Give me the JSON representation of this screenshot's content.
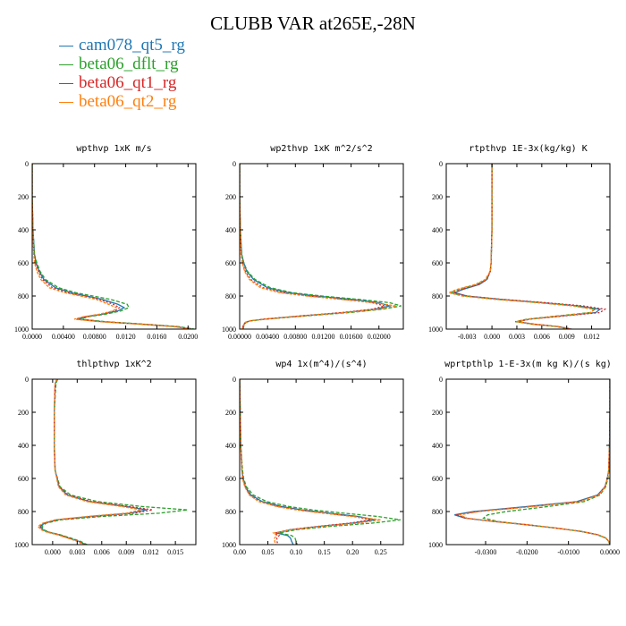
{
  "title": "CLUBB VAR at265E,-28N",
  "colors": {
    "cam078_qt5_rg": "#1f77b4",
    "beta06_dflt_rg": "#2ca02c",
    "beta06_qt1_rg": "#d62728",
    "beta06_qt2_rg": "#ff7f0e"
  },
  "legend": [
    {
      "name": "cam078_qt5_rg",
      "color": "#1f77b4"
    },
    {
      "name": "beta06_dflt_rg",
      "color": "#2ca02c"
    },
    {
      "name": "beta06_qt1_rg",
      "color": "#d62728"
    },
    {
      "name": "beta06_qt2_rg",
      "color": "#ff7f0e"
    }
  ],
  "chart_data": [
    {
      "type": "line",
      "title": "wpthvp  1xK m/s",
      "xlim": [
        0,
        0.021
      ],
      "xticks": [
        0,
        0.004,
        0.008,
        0.012,
        0.016,
        0.02
      ],
      "xtick_labels": [
        "0.0000",
        "0.00400",
        "0.00800",
        "0.0120",
        "0.0160",
        "0.0200"
      ],
      "ylim": [
        1000,
        0
      ],
      "yticks": [
        0,
        200,
        400,
        600,
        800,
        1000
      ],
      "y": [
        0,
        200,
        400,
        550,
        600,
        650,
        700,
        750,
        780,
        800,
        820,
        850,
        870,
        890,
        910,
        925,
        940,
        955,
        970,
        985,
        1000
      ],
      "series": [
        {
          "name": "cam078_qt5_rg",
          "x": [
            0,
            0,
            0.0001,
            0.0003,
            0.0005,
            0.0009,
            0.0015,
            0.003,
            0.005,
            0.007,
            0.009,
            0.011,
            0.0118,
            0.011,
            0.009,
            0.007,
            0.0058,
            0.009,
            0.014,
            0.0185,
            0.0205
          ]
        },
        {
          "name": "beta06_dflt_rg",
          "x": [
            0,
            0,
            0.0001,
            0.0003,
            0.0006,
            0.001,
            0.0017,
            0.0034,
            0.0056,
            0.0078,
            0.01,
            0.0122,
            0.0124,
            0.0114,
            0.0094,
            0.0072,
            0.0062,
            0.0094,
            0.0143,
            0.0188,
            0.0208
          ]
        },
        {
          "name": "beta06_qt1_rg",
          "x": [
            0,
            0,
            0.0001,
            0.0002,
            0.0004,
            0.0008,
            0.0013,
            0.0026,
            0.0046,
            0.0066,
            0.0086,
            0.0104,
            0.0112,
            0.0106,
            0.0088,
            0.0068,
            0.0056,
            0.0088,
            0.0138,
            0.0184,
            0.0204
          ]
        },
        {
          "name": "beta06_qt2_rg",
          "x": [
            0,
            0,
            0.0001,
            0.0002,
            0.0003,
            0.0006,
            0.0011,
            0.0022,
            0.0042,
            0.0062,
            0.0082,
            0.0098,
            0.0108,
            0.0104,
            0.0086,
            0.0066,
            0.0054,
            0.0086,
            0.0136,
            0.0182,
            0.0203
          ]
        }
      ]
    },
    {
      "type": "line",
      "title": "wp2thvp  1xK m^2/s^2",
      "xlim": [
        0,
        0.0235
      ],
      "xticks": [
        0,
        0.004,
        0.008,
        0.012,
        0.016,
        0.02
      ],
      "xtick_labels": [
        "0.00000",
        "0.00400",
        "0.00800",
        "0.01200",
        "0.01600",
        "0.02000"
      ],
      "ylim": [
        1000,
        0
      ],
      "yticks": [
        0,
        200,
        400,
        600,
        800,
        1000
      ],
      "y": [
        0,
        200,
        400,
        550,
        600,
        650,
        700,
        750,
        780,
        800,
        820,
        840,
        860,
        880,
        900,
        920,
        940,
        950,
        960,
        980,
        1000
      ],
      "series": [
        {
          "name": "cam078_qt5_rg",
          "x": [
            0,
            0,
            0.0001,
            0.0003,
            0.0006,
            0.001,
            0.002,
            0.004,
            0.007,
            0.011,
            0.016,
            0.02,
            0.0215,
            0.0195,
            0.015,
            0.009,
            0.0035,
            0.0015,
            0.0008,
            0.0005,
            0.0004
          ]
        },
        {
          "name": "beta06_dflt_rg",
          "x": [
            0,
            0,
            0.0001,
            0.0003,
            0.0006,
            0.0011,
            0.0022,
            0.0044,
            0.0076,
            0.0118,
            0.017,
            0.0215,
            0.0232,
            0.0205,
            0.0158,
            0.0096,
            0.0038,
            0.0016,
            0.0009,
            0.0006,
            0.0005
          ]
        },
        {
          "name": "beta06_qt1_rg",
          "x": [
            0,
            0,
            0.0001,
            0.0002,
            0.0004,
            0.0008,
            0.0016,
            0.0034,
            0.0062,
            0.01,
            0.0148,
            0.019,
            0.0208,
            0.019,
            0.0146,
            0.0088,
            0.0034,
            0.0014,
            0.0008,
            0.0005,
            0.0004
          ]
        },
        {
          "name": "beta06_qt2_rg",
          "x": [
            0,
            0,
            0.0001,
            0.0002,
            0.0004,
            0.0007,
            0.0014,
            0.003,
            0.0058,
            0.0096,
            0.0145,
            0.0192,
            0.0225,
            0.02,
            0.0152,
            0.0092,
            0.0036,
            0.0015,
            0.0008,
            0.0005,
            0.0004
          ]
        }
      ]
    },
    {
      "type": "line",
      "title": "rtpthvp  1E-3x(kg/kg) K",
      "xlim": [
        -0.0055,
        0.0142
      ],
      "xticks": [
        -0.003,
        0,
        0.003,
        0.006,
        0.009,
        0.012
      ],
      "xtick_labels": [
        "-0.003",
        "0.000",
        "0.003",
        "0.006",
        "0.009",
        "0.012"
      ],
      "ylim": [
        1000,
        0
      ],
      "yticks": [
        0,
        200,
        400,
        600,
        800,
        1000
      ],
      "y": [
        0,
        200,
        400,
        600,
        650,
        700,
        730,
        760,
        780,
        800,
        820,
        840,
        860,
        880,
        900,
        920,
        940,
        955,
        970,
        985,
        1000
      ],
      "series": [
        {
          "name": "cam078_qt5_rg",
          "x": [
            0,
            0,
            0,
            -0.0001,
            -0.0002,
            -0.0006,
            -0.0015,
            -0.0035,
            -0.0045,
            -0.003,
            0.001,
            0.006,
            0.0105,
            0.013,
            0.0125,
            0.0085,
            0.0045,
            0.003,
            0.005,
            0.008,
            0.0095
          ]
        },
        {
          "name": "beta06_dflt_rg",
          "x": [
            0,
            0,
            0,
            -0.0001,
            -0.0002,
            -0.0007,
            -0.0018,
            -0.004,
            -0.005,
            -0.0034,
            0.0006,
            0.0056,
            0.01,
            0.0124,
            0.0118,
            0.008,
            0.0042,
            0.0028,
            0.0048,
            0.0078,
            0.0093
          ]
        },
        {
          "name": "beta06_qt1_rg",
          "x": [
            0,
            0,
            0,
            -0.0001,
            -0.0002,
            -0.0006,
            -0.0016,
            -0.0036,
            -0.0046,
            -0.003,
            0.0012,
            0.0064,
            0.011,
            0.0136,
            0.013,
            0.0088,
            0.0046,
            0.0031,
            0.0051,
            0.0081,
            0.0096
          ]
        },
        {
          "name": "beta06_qt2_rg",
          "x": [
            0,
            0,
            0,
            -0.0001,
            -0.0002,
            -0.0008,
            -0.002,
            -0.0042,
            -0.0052,
            -0.0036,
            0.0004,
            0.0054,
            0.0098,
            0.0122,
            0.012,
            0.0082,
            0.0044,
            0.0029,
            0.0049,
            0.0079,
            0.0094
          ]
        }
      ]
    },
    {
      "type": "line",
      "title": "thlpthvp  1xK^2",
      "xlim": [
        -0.0025,
        0.0175
      ],
      "xticks": [
        0,
        0.003,
        0.006,
        0.009,
        0.012,
        0.015
      ],
      "xtick_labels": [
        "0.000",
        "0.003",
        "0.006",
        "0.009",
        "0.012",
        "0.015"
      ],
      "ylim": [
        1000,
        0
      ],
      "yticks": [
        0,
        200,
        400,
        600,
        800,
        1000
      ],
      "y": [
        0,
        30,
        200,
        400,
        550,
        650,
        700,
        740,
        770,
        790,
        810,
        830,
        850,
        870,
        890,
        910,
        925,
        940,
        960,
        980,
        1000
      ],
      "series": [
        {
          "name": "cam078_qt5_rg",
          "x": [
            0.0005,
            0.0003,
            0.0002,
            0.0002,
            0.0003,
            0.0008,
            0.0018,
            0.0045,
            0.009,
            0.0115,
            0.0095,
            0.0045,
            0.0005,
            -0.001,
            -0.0015,
            -0.0012,
            -0.0005,
            0.0008,
            0.002,
            0.0032,
            0.004
          ]
        },
        {
          "name": "beta06_dflt_rg",
          "x": [
            0.0006,
            0.0004,
            0.0002,
            0.0002,
            0.0003,
            0.0009,
            0.0022,
            0.0055,
            0.011,
            0.0165,
            0.013,
            0.006,
            0.001,
            -0.0008,
            -0.0013,
            -0.0011,
            -0.0004,
            0.0009,
            0.0022,
            0.0034,
            0.0042
          ]
        },
        {
          "name": "beta06_qt1_rg",
          "x": [
            0.0005,
            0.0003,
            0.0002,
            0.0002,
            0.0003,
            0.0008,
            0.0019,
            0.0048,
            0.0095,
            0.0122,
            0.01,
            0.0048,
            0.0006,
            -0.001,
            -0.0016,
            -0.0013,
            -0.0006,
            0.0007,
            0.0019,
            0.0031,
            0.0039
          ]
        },
        {
          "name": "beta06_qt2_rg",
          "x": [
            0.0005,
            0.0003,
            0.0002,
            0.0002,
            0.0003,
            0.0007,
            0.0016,
            0.0042,
            0.0085,
            0.0108,
            0.009,
            0.0042,
            0.0003,
            -0.0012,
            -0.0018,
            -0.0014,
            -0.0007,
            0.0006,
            0.0018,
            0.003,
            0.0038
          ]
        }
      ]
    },
    {
      "type": "line",
      "title": "wp4  1x(m^4)/(s^4)",
      "xlim": [
        0,
        0.29
      ],
      "xticks": [
        0,
        0.05,
        0.1,
        0.15,
        0.2,
        0.25
      ],
      "xtick_labels": [
        "0.00",
        "0.05",
        "0.10",
        "0.15",
        "0.20",
        "0.25"
      ],
      "ylim": [
        1000,
        0
      ],
      "yticks": [
        0,
        200,
        400,
        600,
        800,
        1000
      ],
      "y": [
        0,
        200,
        400,
        550,
        600,
        650,
        700,
        740,
        770,
        790,
        810,
        830,
        850,
        870,
        890,
        910,
        930,
        945,
        960,
        980,
        1000
      ],
      "series": [
        {
          "name": "cam078_qt5_rg",
          "x": [
            0.0,
            0.001,
            0.002,
            0.004,
            0.006,
            0.01,
            0.02,
            0.04,
            0.075,
            0.11,
            0.16,
            0.21,
            0.24,
            0.2,
            0.14,
            0.09,
            0.065,
            0.085,
            0.09,
            0.092,
            0.095
          ]
        },
        {
          "name": "beta06_dflt_rg",
          "x": [
            0.0,
            0.001,
            0.002,
            0.005,
            0.007,
            0.012,
            0.024,
            0.048,
            0.088,
            0.128,
            0.185,
            0.245,
            0.285,
            0.235,
            0.16,
            0.1,
            0.07,
            0.092,
            0.098,
            0.1,
            0.102
          ]
        },
        {
          "name": "beta06_qt1_rg",
          "x": [
            0.0,
            0.001,
            0.002,
            0.004,
            0.006,
            0.01,
            0.018,
            0.036,
            0.07,
            0.104,
            0.152,
            0.202,
            0.232,
            0.196,
            0.138,
            0.088,
            0.062,
            0.07,
            0.066,
            0.066,
            0.068
          ]
        },
        {
          "name": "beta06_qt2_rg",
          "x": [
            0.0,
            0.001,
            0.002,
            0.004,
            0.005,
            0.009,
            0.017,
            0.034,
            0.066,
            0.1,
            0.148,
            0.2,
            0.25,
            0.21,
            0.145,
            0.092,
            0.06,
            0.066,
            0.062,
            0.062,
            0.064
          ]
        }
      ]
    },
    {
      "type": "line",
      "title": "wprtpthlp  1-E-3x(m kg K)/(s kg)",
      "xlim": [
        -0.0395,
        0
      ],
      "xticks": [
        -0.03,
        -0.02,
        -0.01,
        0
      ],
      "xtick_labels": [
        "-0.0300",
        "-0.0200",
        "-0.0100",
        "0.0000"
      ],
      "ylim": [
        1000,
        0
      ],
      "yticks": [
        0,
        200,
        400,
        600,
        800,
        1000
      ],
      "y": [
        0,
        200,
        400,
        550,
        600,
        650,
        700,
        740,
        770,
        800,
        820,
        840,
        860,
        880,
        900,
        920,
        940,
        960,
        980,
        1000
      ],
      "series": [
        {
          "name": "cam078_qt5_rg",
          "x": [
            0,
            0,
            -0.0001,
            -0.0003,
            -0.0006,
            -0.0012,
            -0.003,
            -0.008,
            -0.02,
            -0.033,
            -0.0375,
            -0.035,
            -0.028,
            -0.02,
            -0.013,
            -0.007,
            -0.003,
            -0.001,
            -0.0003,
            0
          ]
        },
        {
          "name": "beta06_dflt_rg",
          "x": [
            0,
            0,
            -0.0001,
            -0.0002,
            -0.0005,
            -0.001,
            -0.0024,
            -0.0062,
            -0.015,
            -0.025,
            -0.0295,
            -0.0305,
            -0.027,
            -0.02,
            -0.013,
            -0.007,
            -0.003,
            -0.001,
            -0.0003,
            0
          ]
        },
        {
          "name": "beta06_qt1_rg",
          "x": [
            0,
            0,
            -0.0001,
            -0.0003,
            -0.0006,
            -0.0012,
            -0.0028,
            -0.0075,
            -0.019,
            -0.032,
            -0.0368,
            -0.0348,
            -0.028,
            -0.02,
            -0.013,
            -0.007,
            -0.003,
            -0.001,
            -0.0003,
            0
          ]
        },
        {
          "name": "beta06_qt2_rg",
          "x": [
            0,
            0,
            -0.0001,
            -0.0003,
            -0.0006,
            -0.0011,
            -0.0027,
            -0.0072,
            -0.0185,
            -0.0315,
            -0.0362,
            -0.0345,
            -0.0278,
            -0.0198,
            -0.0128,
            -0.0069,
            -0.0029,
            -0.001,
            -0.0003,
            0
          ]
        }
      ]
    }
  ]
}
